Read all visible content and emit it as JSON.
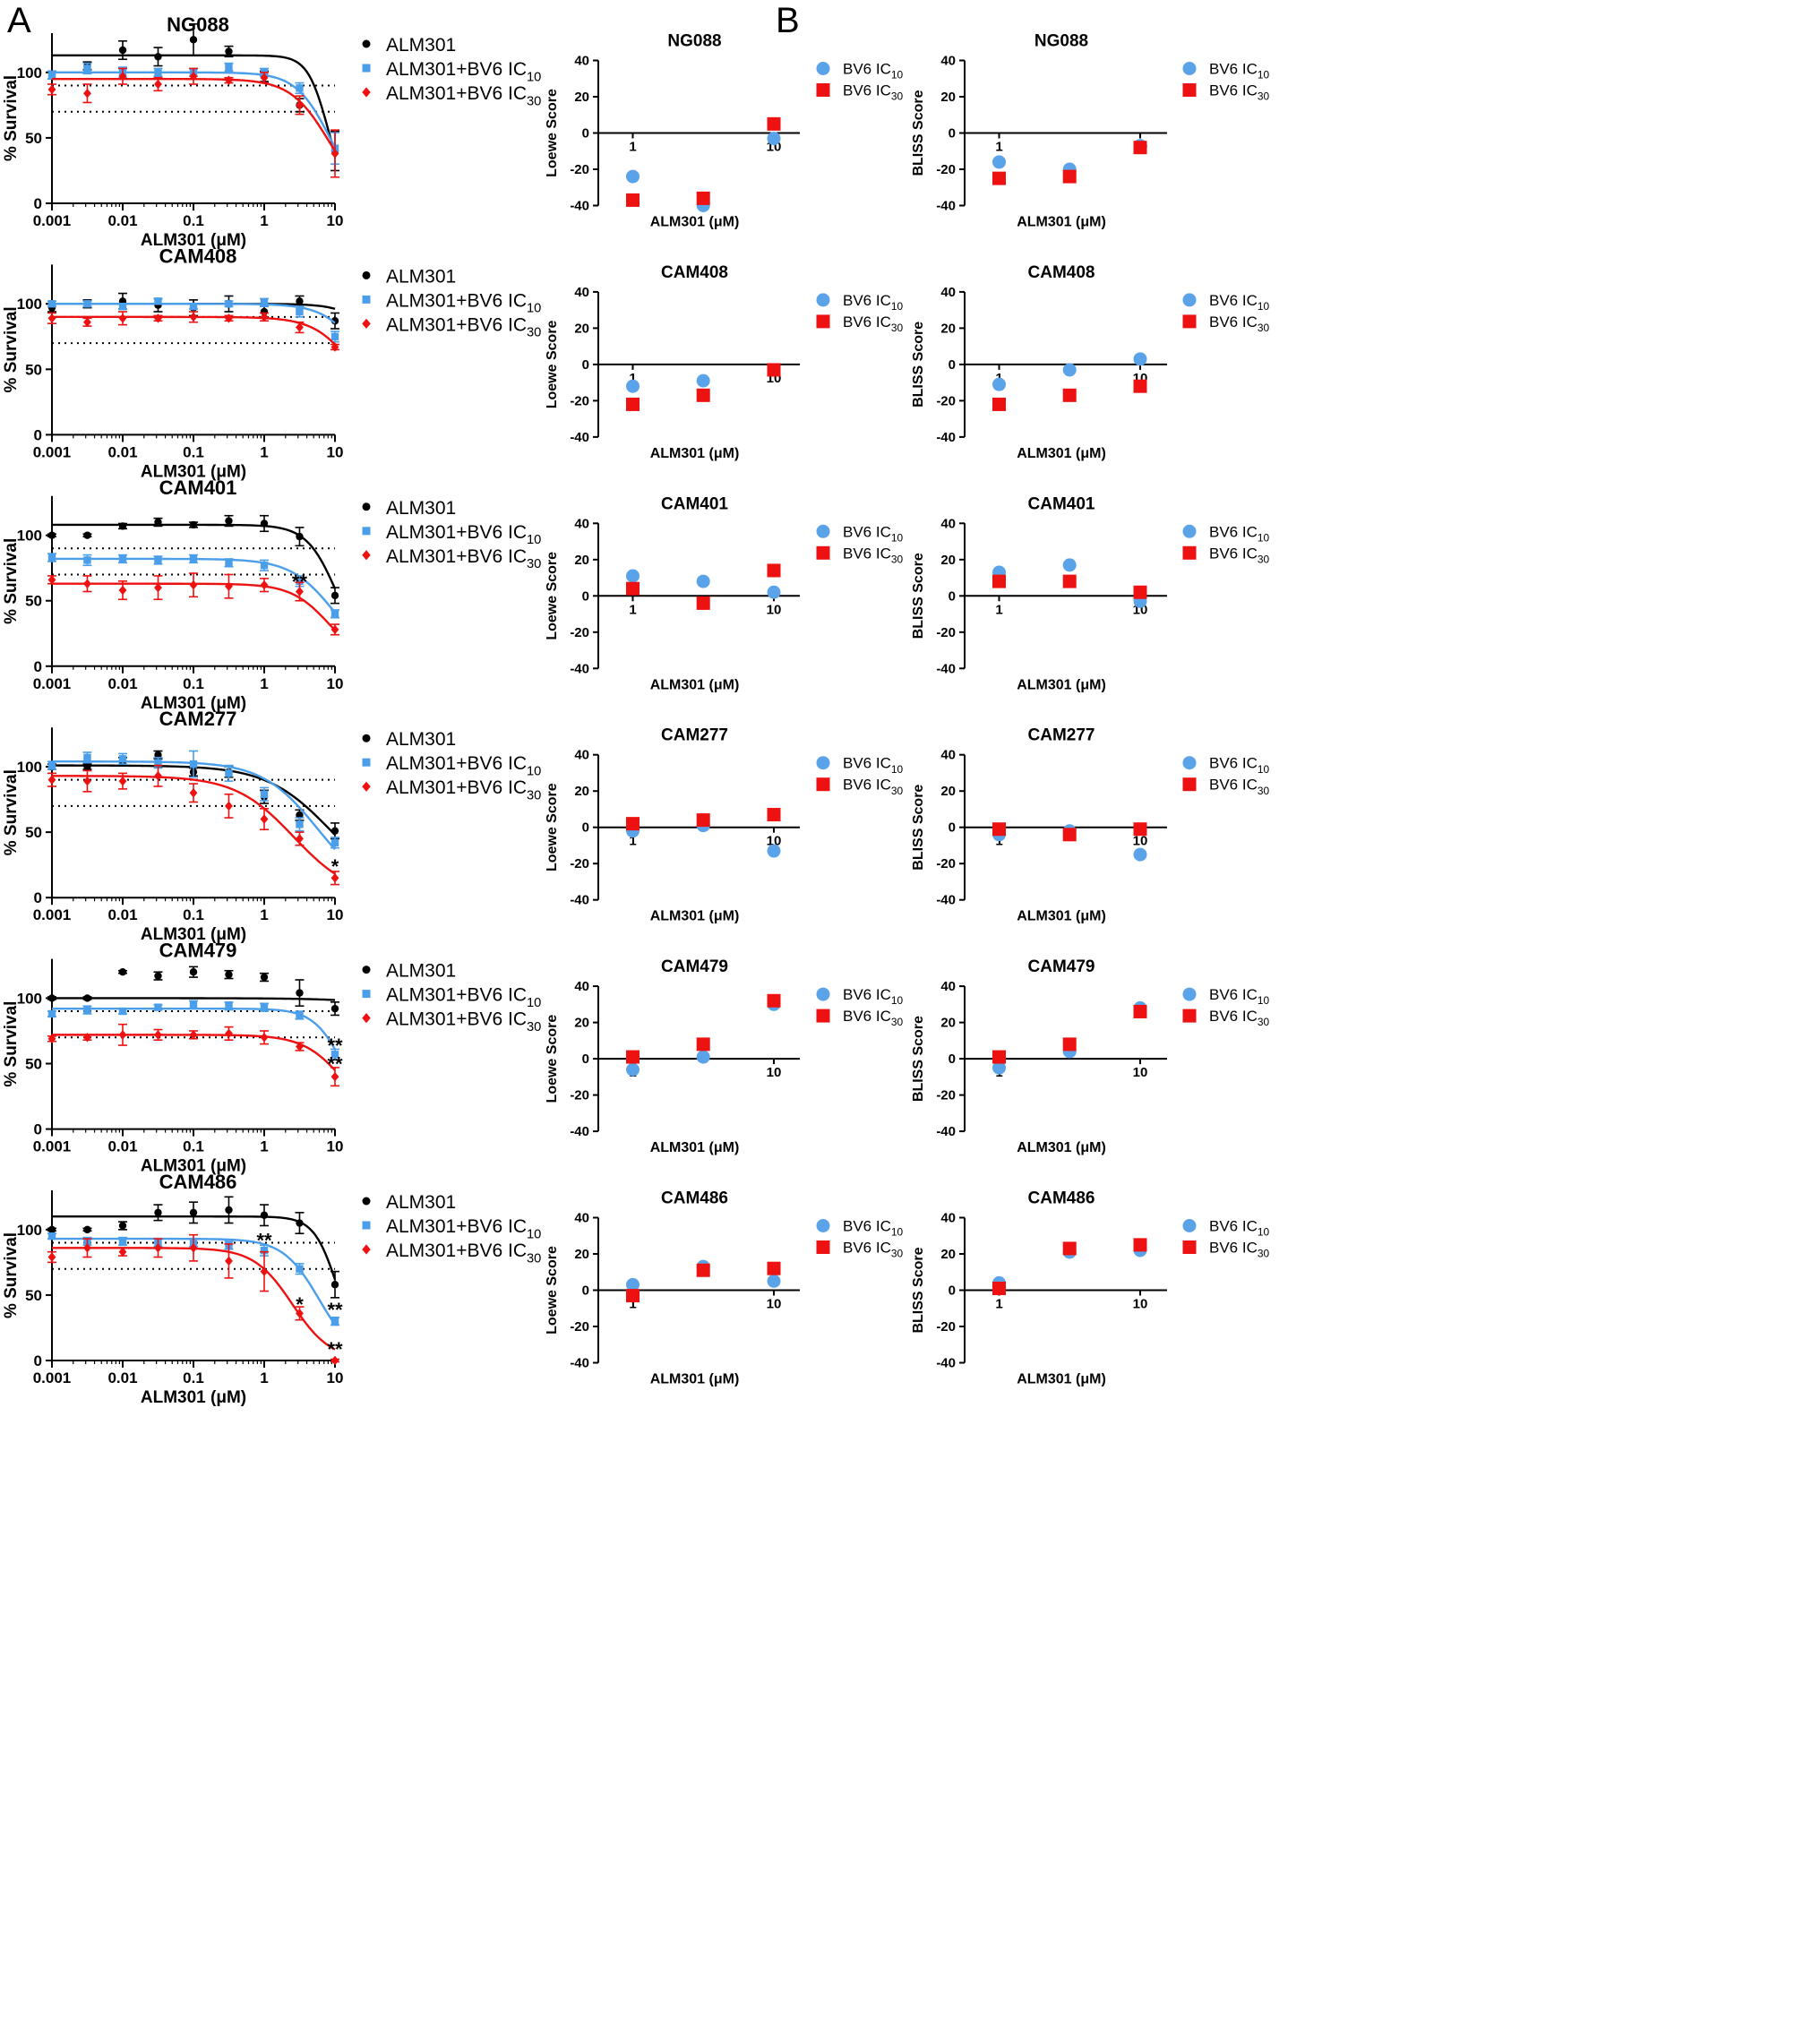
{
  "panel_labels": [
    "A",
    "B"
  ],
  "colors": {
    "ALM301": "#000000",
    "BV6_IC10": "#4a9eea",
    "BV6_IC30": "#ee1111",
    "legend_IC10": "#5ba3e8",
    "legend_IC30": "#ee1111"
  },
  "legend_A": [
    {
      "key": "ALM301",
      "label": "ALM301",
      "sub": "",
      "marker": "circle"
    },
    {
      "key": "BV6_IC10",
      "label": "ALM301+BV6 IC",
      "sub": "10",
      "marker": "square"
    },
    {
      "key": "BV6_IC30",
      "label": "ALM301+BV6 IC",
      "sub": "30",
      "marker": "diamond"
    }
  ],
  "legend_B": [
    {
      "key": "legend_IC10",
      "label": "BV6 IC",
      "sub": "10",
      "marker": "circle"
    },
    {
      "key": "legend_IC30",
      "label": "BV6 IC",
      "sub": "30",
      "marker": "square"
    }
  ],
  "axis_A": {
    "xlabel": "ALM301 (μM)",
    "ylabel": "% Survival",
    "x_ticks": [
      0.001,
      0.01,
      0.1,
      1,
      10
    ],
    "x_tick_labels": [
      "0.001",
      "0.01",
      "0.1",
      "1",
      "10"
    ],
    "y_ticks": [
      0,
      50,
      100
    ],
    "y_tick_labels": [
      "0",
      "50",
      "100"
    ],
    "xlim": [
      0.001,
      10
    ],
    "ylim": [
      0,
      130
    ],
    "xscale": "log",
    "dotted_reference_lines": [
      90,
      70
    ]
  },
  "axis_B": {
    "xlabel": "ALM301 (μM)",
    "ylabel_loewe": "Loewe Score",
    "ylabel_bliss": "BLISS Score",
    "x_ticks": [
      1,
      10
    ],
    "x_tick_labels": [
      "1",
      "10"
    ],
    "y_ticks": [
      -40,
      -20,
      0,
      20,
      40
    ],
    "y_tick_labels": [
      "-40",
      "-20",
      "0",
      "20",
      "40"
    ],
    "ylim": [
      -40,
      40
    ],
    "xscale": "log"
  },
  "chart_data": [
    {
      "type": "scatter",
      "name": "NG088",
      "title": "NG088",
      "x": [
        0.001,
        0.00316,
        0.01,
        0.0316,
        0.1,
        0.316,
        1,
        3.16,
        10
      ],
      "series": [
        {
          "key": "ALM301",
          "y": [
            98,
            105,
            117,
            112,
            125,
            116,
            97,
            75,
            40
          ],
          "err": [
            3,
            3,
            7,
            7,
            12,
            4,
            4,
            5,
            15
          ],
          "fit": {
            "top": 113,
            "bottom": 0,
            "ic50": 8.0,
            "hill": 3.0
          }
        },
        {
          "key": "BV6_IC10",
          "y": [
            98,
            103,
            100,
            100,
            100,
            104,
            100,
            88,
            42
          ],
          "err": [
            3,
            4,
            4,
            3,
            3,
            3,
            3,
            4,
            12
          ],
          "fit": {
            "top": 100,
            "bottom": 0,
            "ic50": 8.5,
            "hill": 1.8
          }
        },
        {
          "key": "BV6_IC30",
          "y": [
            87,
            84,
            97,
            91,
            97,
            94,
            96,
            75,
            38
          ],
          "err": [
            4,
            7,
            6,
            5,
            6,
            2,
            4,
            7,
            18
          ],
          "fit": {
            "top": 95,
            "bottom": 0,
            "ic50": 8.2,
            "hill": 1.6
          }
        }
      ],
      "sig": [],
      "loewe": {
        "x": [
          1,
          3.16,
          10
        ],
        "IC10": [
          -24,
          -40,
          -3
        ],
        "IC30": [
          -37,
          -36,
          5
        ]
      },
      "bliss": {
        "x": [
          1,
          3.16,
          10
        ],
        "IC10": [
          -16,
          -20,
          -7
        ],
        "IC30": [
          -25,
          -24,
          -8
        ]
      }
    },
    {
      "type": "scatter",
      "name": "CAM408",
      "title": "CAM408",
      "x": [
        0.001,
        0.00316,
        0.01,
        0.0316,
        0.1,
        0.316,
        1,
        3.16,
        10
      ],
      "series": [
        {
          "key": "ALM301",
          "y": [
            97,
            100,
            102,
            99,
            97,
            100,
            94,
            102,
            87
          ],
          "err": [
            3,
            3,
            6,
            5,
            6,
            6,
            4,
            4,
            6
          ],
          "fit": {
            "top": 100,
            "bottom": 0,
            "ic50": 60,
            "hill": 1.8
          }
        },
        {
          "key": "BV6_IC10",
          "y": [
            100,
            100,
            98,
            102,
            98,
            100,
            101,
            94,
            75
          ],
          "err": [
            2,
            2,
            2,
            2,
            2,
            2,
            3,
            4,
            4
          ],
          "fit": {
            "top": 100,
            "bottom": 0,
            "ic50": 30,
            "hill": 1.6
          }
        },
        {
          "key": "BV6_IC30",
          "y": [
            89,
            86,
            89,
            89,
            90,
            89,
            90,
            82,
            67
          ],
          "err": [
            4,
            3,
            5,
            2,
            4,
            2,
            3,
            4,
            2
          ],
          "fit": {
            "top": 90,
            "bottom": 0,
            "ic50": 22,
            "hill": 1.5
          }
        }
      ],
      "sig": [],
      "loewe": {
        "x": [
          1,
          3.16,
          10
        ],
        "IC10": [
          -12,
          -9,
          -3
        ],
        "IC30": [
          -22,
          -17,
          -3
        ]
      },
      "bliss": {
        "x": [
          1,
          3.16,
          10
        ],
        "IC10": [
          -11,
          -3,
          3
        ],
        "IC30": [
          -22,
          -17,
          -12
        ]
      }
    },
    {
      "type": "scatter",
      "name": "CAM401",
      "title": "CAM401",
      "x": [
        0.001,
        0.00316,
        0.01,
        0.0316,
        0.1,
        0.316,
        1,
        3.16,
        10
      ],
      "series": [
        {
          "key": "ALM301",
          "y": [
            100,
            100,
            107,
            110,
            108,
            111,
            109,
            99,
            54
          ],
          "err": [
            1,
            1,
            2,
            3,
            2,
            4,
            6,
            7,
            6
          ],
          "fit": {
            "top": 108,
            "bottom": 0,
            "ic50": 11,
            "hill": 2.0
          }
        },
        {
          "key": "BV6_IC10",
          "y": [
            83,
            81,
            82,
            81,
            82,
            79,
            77,
            65,
            40
          ],
          "err": [
            3,
            4,
            3,
            3,
            3,
            3,
            4,
            4,
            3
          ],
          "fit": {
            "top": 82,
            "bottom": 0,
            "ic50": 10,
            "hill": 1.4
          }
        },
        {
          "key": "BV6_IC30",
          "y": [
            66,
            63,
            58,
            60,
            62,
            61,
            62,
            57,
            28
          ],
          "err": [
            3,
            6,
            7,
            9,
            9,
            9,
            5,
            7,
            4
          ],
          "fit": {
            "top": 63,
            "bottom": 0,
            "ic50": 8.5,
            "hill": 1.6
          }
        }
      ],
      "sig": [
        {
          "series": "BV6_IC10",
          "x": 3.16,
          "y": 65,
          "label": "**"
        }
      ],
      "loewe": {
        "x": [
          1,
          3.16,
          10
        ],
        "IC10": [
          11,
          8,
          2
        ],
        "IC30": [
          4,
          -4,
          14
        ]
      },
      "bliss": {
        "x": [
          1,
          3.16,
          10
        ],
        "IC10": [
          13,
          17,
          -3
        ],
        "IC30": [
          8,
          8,
          2
        ]
      }
    },
    {
      "type": "scatter",
      "name": "CAM277",
      "title": "CAM277",
      "x": [
        0.001,
        0.00316,
        0.01,
        0.0316,
        0.1,
        0.316,
        1,
        3.16,
        10
      ],
      "series": [
        {
          "key": "ALM301",
          "y": [
            100,
            100,
            104,
            109,
            96,
            96,
            77,
            63,
            51
          ],
          "err": [
            2,
            2,
            3,
            3,
            3,
            4,
            5,
            4,
            6
          ],
          "fit": {
            "top": 101,
            "bottom": 0,
            "ic50": 9.0,
            "hill": 0.95
          }
        },
        {
          "key": "BV6_IC10",
          "y": [
            101,
            107,
            106,
            103,
            102,
            95,
            79,
            56,
            42
          ],
          "err": [
            3,
            4,
            4,
            4,
            10,
            6,
            5,
            5,
            4
          ],
          "fit": {
            "top": 104,
            "bottom": 0,
            "ic50": 5.8,
            "hill": 1.1
          }
        },
        {
          "key": "BV6_IC30",
          "y": [
            90,
            89,
            89,
            93,
            80,
            70,
            60,
            45,
            15
          ],
          "err": [
            5,
            8,
            6,
            8,
            7,
            9,
            8,
            5,
            5
          ],
          "fit": {
            "top": 93,
            "bottom": 0,
            "ic50": 2.6,
            "hill": 1.05
          }
        }
      ],
      "sig": [
        {
          "series": "BV6_IC30",
          "x": 10,
          "y": 24,
          "label": "*"
        }
      ],
      "loewe": {
        "x": [
          1,
          3.16,
          10
        ],
        "IC10": [
          -2,
          1,
          -13
        ],
        "IC30": [
          2,
          4,
          7
        ]
      },
      "bliss": {
        "x": [
          1,
          3.16,
          10
        ],
        "IC10": [
          -4,
          -2,
          -15
        ],
        "IC30": [
          -1,
          -4,
          -1
        ]
      }
    },
    {
      "type": "scatter",
      "name": "CAM479",
      "title": "CAM479",
      "x": [
        0.001,
        0.00316,
        0.01,
        0.0316,
        0.1,
        0.316,
        1,
        3.16,
        10
      ],
      "series": [
        {
          "key": "ALM301",
          "y": [
            100,
            100,
            120,
            117,
            120,
            118,
            116,
            104,
            92
          ],
          "err": [
            1,
            1,
            1,
            3,
            4,
            3,
            3,
            10,
            5
          ],
          "fit": {
            "top": 100,
            "bottom": 0,
            "ic50": 2000,
            "hill": 0.8
          }
        },
        {
          "key": "BV6_IC10",
          "y": [
            88,
            91,
            90,
            93,
            95,
            94,
            93,
            87,
            57
          ],
          "err": [
            2,
            3,
            2,
            2,
            3,
            3,
            3,
            3,
            4
          ],
          "fit": {
            "top": 92,
            "bottom": 0,
            "ic50": 14,
            "hill": 2.0
          }
        },
        {
          "key": "BV6_IC30",
          "y": [
            69,
            70,
            72,
            72,
            72,
            73,
            70,
            63,
            40
          ],
          "err": [
            2,
            2,
            8,
            4,
            3,
            5,
            5,
            3,
            7
          ],
          "fit": {
            "top": 72,
            "bottom": 0,
            "ic50": 14,
            "hill": 1.5
          }
        }
      ],
      "sig": [
        {
          "series": "BV6_IC10",
          "x": 10,
          "y": 64,
          "label": "**"
        },
        {
          "series": "BV6_IC30",
          "x": 10,
          "y": 50,
          "label": "**"
        }
      ],
      "loewe": {
        "x": [
          1,
          3.16,
          10
        ],
        "IC10": [
          -6,
          1,
          30
        ],
        "IC30": [
          1,
          8,
          32
        ]
      },
      "bliss": {
        "x": [
          1,
          3.16,
          10
        ],
        "IC10": [
          -5,
          4,
          28
        ],
        "IC30": [
          1,
          8,
          26
        ]
      }
    },
    {
      "type": "scatter",
      "name": "CAM486",
      "title": "CAM486",
      "x": [
        0.001,
        0.00316,
        0.01,
        0.0316,
        0.1,
        0.316,
        1,
        3.16,
        10
      ],
      "series": [
        {
          "key": "ALM301",
          "y": [
            100,
            100,
            103,
            113,
            113,
            115,
            111,
            105,
            58
          ],
          "err": [
            1,
            1,
            3,
            6,
            8,
            10,
            8,
            8,
            10
          ],
          "fit": {
            "top": 110,
            "bottom": 0,
            "ic50": 11,
            "hill": 2.6
          }
        },
        {
          "key": "BV6_IC10",
          "y": [
            95,
            91,
            91,
            90,
            90,
            88,
            84,
            70,
            30
          ],
          "err": [
            2,
            3,
            3,
            3,
            3,
            3,
            4,
            4,
            3
          ],
          "fit": {
            "top": 93,
            "bottom": 0,
            "ic50": 6.0,
            "hill": 1.7
          }
        },
        {
          "key": "BV6_IC30",
          "y": [
            79,
            86,
            83,
            86,
            86,
            76,
            68,
            36,
            0
          ],
          "err": [
            4,
            7,
            3,
            7,
            10,
            13,
            15,
            5,
            1
          ],
          "fit": {
            "top": 86,
            "bottom": 0,
            "ic50": 2.5,
            "hill": 1.6
          }
        }
      ],
      "sig": [
        {
          "series": "BV6_IC10",
          "x": 1,
          "y": 92,
          "label": "**"
        },
        {
          "series": "BV6_IC30",
          "x": 3.16,
          "y": 43,
          "label": "*"
        },
        {
          "series": "BV6_IC10",
          "x": 10,
          "y": 39,
          "label": "**"
        },
        {
          "series": "BV6_IC30",
          "x": 10,
          "y": 9,
          "label": "**"
        }
      ],
      "loewe": {
        "x": [
          1,
          3.16,
          10
        ],
        "IC10": [
          3,
          13,
          5
        ],
        "IC30": [
          -3,
          11,
          12
        ]
      },
      "bliss": {
        "x": [
          1,
          3.16,
          10
        ],
        "IC10": [
          4,
          21,
          22
        ],
        "IC30": [
          1,
          23,
          25
        ]
      }
    }
  ]
}
